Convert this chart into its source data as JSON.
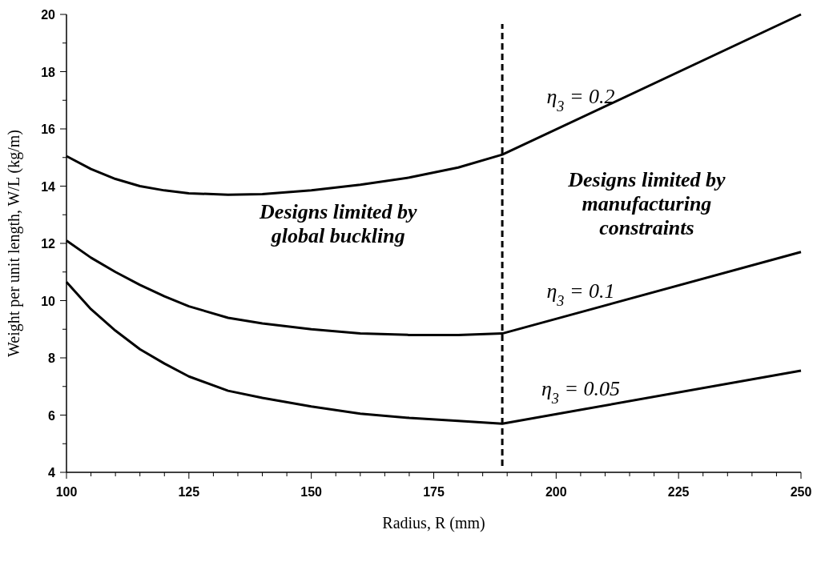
{
  "chart_data": {
    "type": "line",
    "xlabel": "Radius, R (mm)",
    "ylabel": "Weight per unit length, W/L (kg/m)",
    "xlim": [
      100,
      250
    ],
    "ylim": [
      4,
      20
    ],
    "xticks": [
      100,
      {
        "value": 105,
        "label": null
      },
      {
        "value": 110,
        "label": null
      },
      {
        "value": 115,
        "label": null
      },
      {
        "value": 120,
        "label": null
      },
      125,
      {
        "value": 130,
        "label": null
      },
      {
        "value": 135,
        "label": null
      },
      {
        "value": 140,
        "label": null
      },
      {
        "value": 145,
        "label": null
      },
      150,
      {
        "value": 155,
        "label": null
      },
      {
        "value": 160,
        "label": null
      },
      {
        "value": 165,
        "label": null
      },
      {
        "value": 170,
        "label": null
      },
      175,
      {
        "value": 180,
        "label": null
      },
      {
        "value": 185,
        "label": null
      },
      {
        "value": 190,
        "label": null
      },
      {
        "value": 195,
        "label": null
      },
      200,
      {
        "value": 205,
        "label": null
      },
      {
        "value": 210,
        "label": null
      },
      {
        "value": 215,
        "label": null
      },
      {
        "value": 220,
        "label": null
      },
      225,
      {
        "value": 230,
        "label": null
      },
      {
        "value": 235,
        "label": null
      },
      {
        "value": 240,
        "label": null
      },
      {
        "value": 245,
        "label": null
      },
      250
    ],
    "yticks": [
      4,
      {
        "value": 5,
        "label": null
      },
      6,
      {
        "value": 7,
        "label": null
      },
      8,
      {
        "value": 9,
        "label": null
      },
      10,
      {
        "value": 11,
        "label": null
      },
      12,
      {
        "value": 13,
        "label": null
      },
      14,
      {
        "value": 15,
        "label": null
      },
      16,
      {
        "value": 17,
        "label": null
      },
      18,
      {
        "value": 19,
        "label": null
      },
      20
    ],
    "grid": false,
    "marker": "none",
    "line_style": "solid",
    "x": [
      100,
      105,
      110,
      115,
      120,
      125,
      133,
      140,
      150,
      160,
      170,
      180,
      189,
      250
    ],
    "series": [
      {
        "name": "η$_{3}$ = 0.2",
        "color": "#000000",
        "values": [
          15.05,
          14.6,
          14.25,
          14.0,
          13.85,
          13.75,
          13.7,
          13.72,
          13.85,
          14.05,
          14.3,
          14.65,
          15.1,
          20
        ]
      },
      {
        "name": "η$_{3}$ = 0.1",
        "color": "#000000",
        "values": [
          12.1,
          11.5,
          11.0,
          10.55,
          10.15,
          9.8,
          9.4,
          9.2,
          9.0,
          8.85,
          8.8,
          8.8,
          8.85,
          11.7
        ]
      },
      {
        "name": "η$_{3}$ = 0.05",
        "color": "#000000",
        "values": [
          10.65,
          9.7,
          8.95,
          8.3,
          7.8,
          7.35,
          6.85,
          6.6,
          6.3,
          6.05,
          5.9,
          5.8,
          5.7,
          7.55
        ]
      }
    ],
    "ref_lines": [
      {
        "axis": "x",
        "value": 189,
        "color": "#000000",
        "line_style": "dashed"
      }
    ],
    "annotations": [
      "Designs limited by\nglobal buckling",
      "Designs limited by\nmanufacturing\nconstraints"
    ]
  }
}
